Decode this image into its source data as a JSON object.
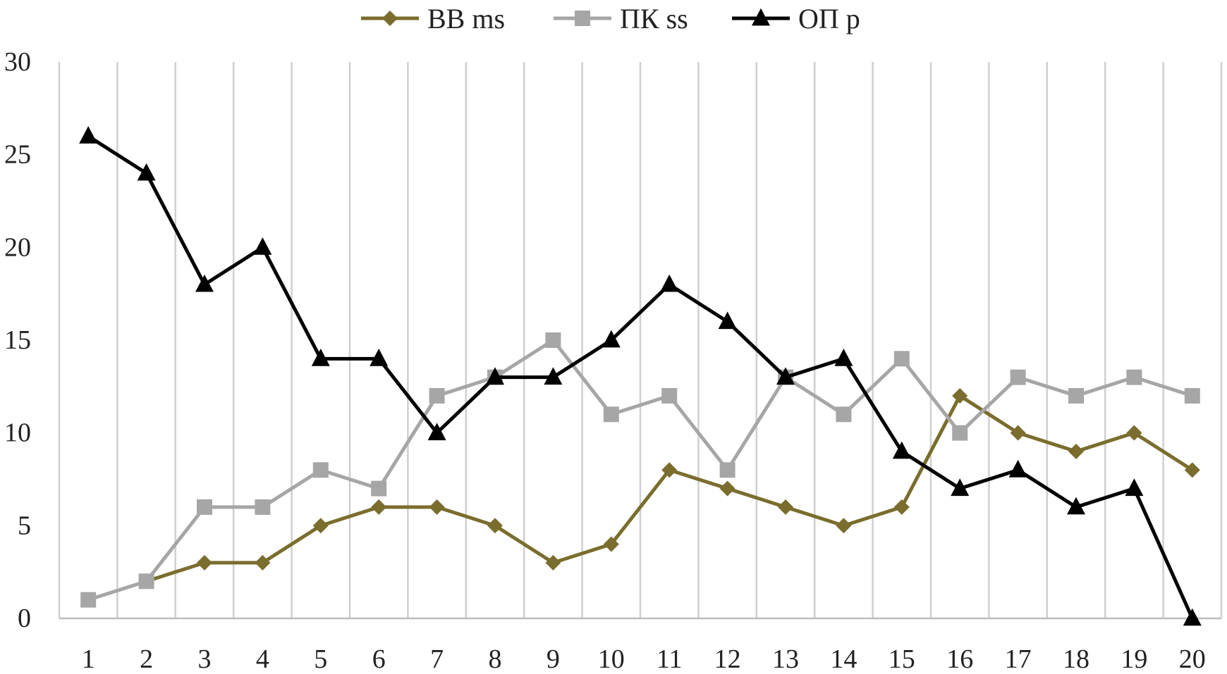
{
  "chart_data": {
    "type": "line",
    "title": "",
    "xlabel": "",
    "ylabel": "",
    "x": [
      1,
      2,
      3,
      4,
      5,
      6,
      7,
      8,
      9,
      10,
      11,
      12,
      13,
      14,
      15,
      16,
      17,
      18,
      19,
      20
    ],
    "ylim": [
      0,
      30
    ],
    "yticks": [
      0,
      5,
      10,
      15,
      20,
      25,
      30
    ],
    "grid": "vertical",
    "legend_position": "top",
    "series": [
      {
        "name": "ВВ ms",
        "marker": "diamond",
        "color": "#7a6d2d",
        "values": [
          null,
          2,
          3,
          3,
          5,
          6,
          6,
          5,
          3,
          4,
          8,
          7,
          6,
          5,
          6,
          12,
          10,
          9,
          10,
          8
        ]
      },
      {
        "name": "ПК ss",
        "marker": "square",
        "color": "#a6a6a6",
        "values": [
          1,
          2,
          6,
          6,
          8,
          7,
          12,
          13,
          15,
          11,
          12,
          8,
          13,
          11,
          14,
          10,
          13,
          12,
          13,
          12
        ]
      },
      {
        "name": "ОП p",
        "marker": "triangle",
        "color": "#000000",
        "values": [
          26,
          24,
          18,
          20,
          14,
          14,
          10,
          13,
          13,
          15,
          18,
          16,
          13,
          14,
          9,
          7,
          8,
          6,
          7,
          0
        ]
      }
    ]
  }
}
